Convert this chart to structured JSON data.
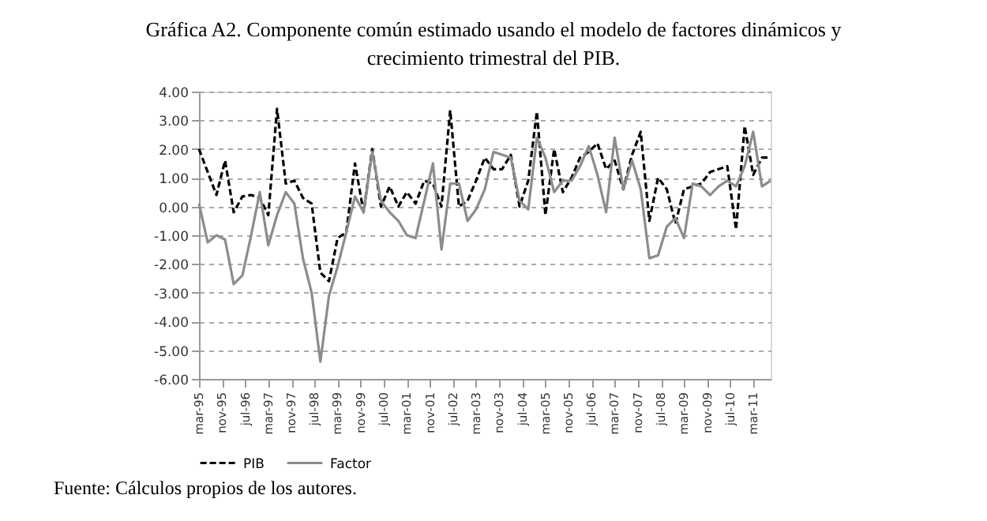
{
  "chart_data": {
    "type": "line",
    "title": "Gráfica A2. Componente común estimado usando el modelo de factores dinámicos y crecimiento trimestral del PIB.",
    "annotations": [
      "Fuente: Cálculos propios de los autores."
    ],
    "x": [
      "1995-03",
      "1995-06",
      "1995-09",
      "1995-12",
      "1996-03",
      "1996-06",
      "1996-09",
      "1996-12",
      "1997-03",
      "1997-06",
      "1997-09",
      "1997-12",
      "1998-03",
      "1998-06",
      "1998-09",
      "1998-12",
      "1999-03",
      "1999-06",
      "1999-09",
      "1999-12",
      "2000-03",
      "2000-06",
      "2000-09",
      "2000-12",
      "2001-03",
      "2001-06",
      "2001-09",
      "2001-12",
      "2002-03",
      "2002-06",
      "2002-09",
      "2002-12",
      "2003-03",
      "2003-06",
      "2003-09",
      "2003-12",
      "2004-03",
      "2004-06",
      "2004-09",
      "2004-12",
      "2005-03",
      "2005-06",
      "2005-09",
      "2005-12",
      "2006-03",
      "2006-06",
      "2006-09",
      "2006-12",
      "2007-03",
      "2007-06",
      "2007-09",
      "2007-12",
      "2008-03",
      "2008-06",
      "2008-09",
      "2008-12",
      "2009-03",
      "2009-06",
      "2009-09",
      "2009-12",
      "2010-03",
      "2010-06",
      "2010-09",
      "2010-12",
      "2011-03",
      "2011-06",
      "2011-09"
    ],
    "series": [
      {
        "name": "PIB",
        "color": "#000000",
        "line_style": "dashed",
        "values": [
          2.0,
          1.2,
          0.4,
          1.6,
          -0.2,
          0.35,
          0.4,
          0.3,
          -0.3,
          3.4,
          0.8,
          0.9,
          0.3,
          0.1,
          -2.3,
          -2.6,
          -1.1,
          -0.9,
          1.5,
          -0.2,
          2.0,
          0.0,
          0.7,
          0.0,
          0.5,
          0.1,
          0.9,
          0.8,
          0.0,
          3.35,
          0.0,
          0.2,
          0.9,
          1.7,
          1.3,
          1.3,
          1.8,
          0.0,
          0.9,
          3.3,
          -0.3,
          2.0,
          0.5,
          1.0,
          1.7,
          1.9,
          2.2,
          1.3,
          1.6,
          0.6,
          1.8,
          2.6,
          -0.5,
          1.0,
          0.6,
          -0.6,
          0.6,
          0.7,
          0.8,
          1.2,
          1.3,
          1.4,
          -0.8,
          2.8,
          1.1,
          1.7,
          1.7
        ]
      },
      {
        "name": "Factor",
        "color": "#8c8c8c",
        "line_style": "solid",
        "values": [
          0.1,
          -1.25,
          -1.0,
          -1.15,
          -2.7,
          -2.4,
          -1.0,
          0.5,
          -1.35,
          -0.3,
          0.5,
          0.1,
          -1.8,
          -3.0,
          -5.4,
          -3.1,
          -2.1,
          -0.9,
          0.35,
          -0.2,
          1.9,
          0.2,
          -0.2,
          -0.5,
          -1.0,
          -1.1,
          0.2,
          1.5,
          -1.5,
          0.8,
          0.8,
          -0.5,
          -0.1,
          0.6,
          1.9,
          1.8,
          1.7,
          0.2,
          -0.1,
          2.4,
          1.7,
          0.5,
          0.9,
          0.9,
          1.4,
          2.1,
          1.1,
          -0.2,
          2.4,
          0.6,
          1.6,
          0.6,
          -1.8,
          -1.7,
          -0.7,
          -0.4,
          -1.1,
          0.8,
          0.7,
          0.4,
          0.7,
          0.9,
          0.7,
          1.4,
          2.6,
          0.7,
          0.9
        ]
      }
    ],
    "xlim": [
      "1995-03",
      "2011-09"
    ],
    "xticks": [
      {
        "value": "1995-03",
        "label": "mar-95"
      },
      {
        "value": "1995-11",
        "label": "nov-95"
      },
      {
        "value": "1996-07",
        "label": "jul-96"
      },
      {
        "value": "1997-03",
        "label": "mar-97"
      },
      {
        "value": "1997-11",
        "label": "nov-97"
      },
      {
        "value": "1998-07",
        "label": "jul-98"
      },
      {
        "value": "1999-03",
        "label": "mar-99"
      },
      {
        "value": "1999-11",
        "label": "nov-99"
      },
      {
        "value": "2000-07",
        "label": "jul-00"
      },
      {
        "value": "2001-03",
        "label": "mar-01"
      },
      {
        "value": "2001-11",
        "label": "nov-01"
      },
      {
        "value": "2002-07",
        "label": "jul-02"
      },
      {
        "value": "2003-03",
        "label": "mar-03"
      },
      {
        "value": "2003-11",
        "label": "nov-03"
      },
      {
        "value": "2004-07",
        "label": "jul-04"
      },
      {
        "value": "2005-03",
        "label": "mar-05"
      },
      {
        "value": "2005-11",
        "label": "nov-05"
      },
      {
        "value": "2006-07",
        "label": "jul-06"
      },
      {
        "value": "2007-03",
        "label": "mar-07"
      },
      {
        "value": "2007-11",
        "label": "nov-07"
      },
      {
        "value": "2008-07",
        "label": "jul-08"
      },
      {
        "value": "2009-03",
        "label": "mar-09"
      },
      {
        "value": "2009-11",
        "label": "nov-09"
      },
      {
        "value": "2010-07",
        "label": "jul-10"
      },
      {
        "value": "2011-03",
        "label": "mar-11"
      }
    ],
    "ylim": [
      -6,
      4
    ],
    "yticks": [
      {
        "value": -6,
        "label": "-6.00"
      },
      {
        "value": -5,
        "label": "-5.00"
      },
      {
        "value": -4,
        "label": "-4.00"
      },
      {
        "value": -3,
        "label": "-3.00"
      },
      {
        "value": -2,
        "label": "-2.00"
      },
      {
        "value": -1,
        "label": "-1.00"
      },
      {
        "value": 0,
        "label": "0.00"
      },
      {
        "value": 1,
        "label": "1.00"
      },
      {
        "value": 2,
        "label": "2.00"
      },
      {
        "value": 3,
        "label": "3.00"
      },
      {
        "value": 4,
        "label": "4.00"
      }
    ],
    "grid": "y",
    "legend": "bottom",
    "marker": "none"
  }
}
